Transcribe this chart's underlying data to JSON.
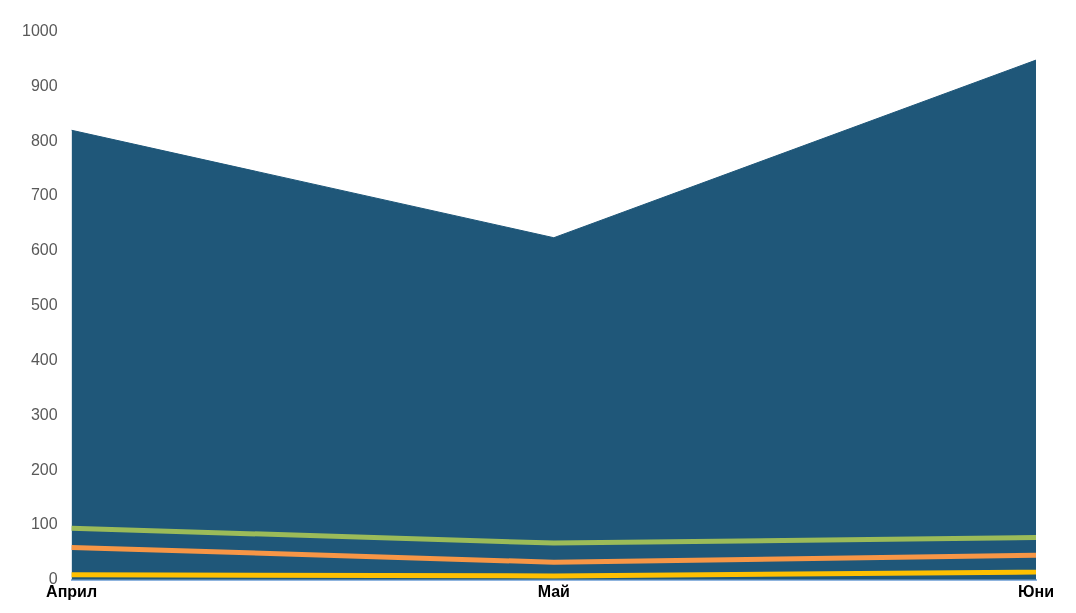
{
  "chart_data": {
    "type": "area",
    "categories": [
      "Април",
      "Май",
      "Юни"
    ],
    "ylim": [
      0,
      1000
    ],
    "yticks": [
      0,
      100,
      200,
      300,
      400,
      500,
      600,
      700,
      800,
      900,
      1000
    ],
    "grid": false,
    "legend": false,
    "series": [
      {
        "color": "#1f5779",
        "values": [
          820,
          624,
          948
        ]
      },
      {
        "type": "line",
        "color": "#9bbb59",
        "values": [
          94,
          67,
          77
        ]
      },
      {
        "type": "line",
        "color": "#f79646",
        "values": [
          59,
          32,
          45
        ]
      },
      {
        "type": "line",
        "color": "#ffc000",
        "values": [
          9,
          7,
          14
        ]
      }
    ]
  }
}
